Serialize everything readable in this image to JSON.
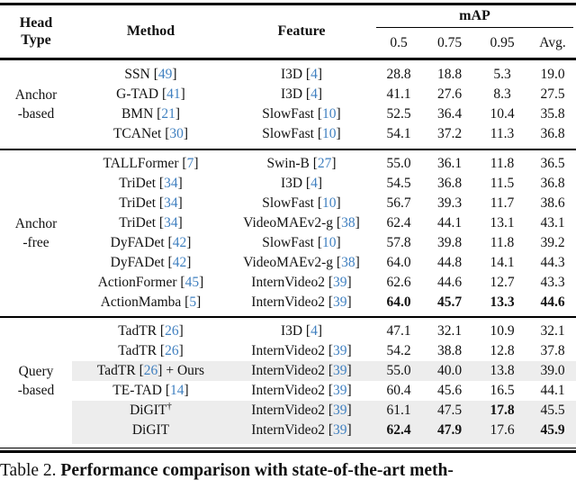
{
  "header": {
    "head_type_line1": "Head",
    "head_type_line2": "Type",
    "method": "Method",
    "feature": "Feature",
    "map_label": "mAP",
    "subcols": [
      "0.5",
      "0.75",
      "0.95",
      "Avg."
    ]
  },
  "sections": [
    {
      "head_type_lines": [
        "Anchor",
        "-based"
      ],
      "rows": [
        {
          "method": "SSN",
          "mcite": "49",
          "mpost": "",
          "sup": "",
          "feature": "I3D",
          "fcite": "4",
          "vals": [
            "28.8",
            "18.8",
            "5.3",
            "19.0"
          ],
          "bold": [
            false,
            false,
            false,
            false
          ],
          "hl": false
        },
        {
          "method": "G-TAD",
          "mcite": "41",
          "mpost": "",
          "sup": "",
          "feature": "I3D",
          "fcite": "4",
          "vals": [
            "41.1",
            "27.6",
            "8.3",
            "27.5"
          ],
          "bold": [
            false,
            false,
            false,
            false
          ],
          "hl": false
        },
        {
          "method": "BMN",
          "mcite": "21",
          "mpost": "",
          "sup": "",
          "feature": "SlowFast",
          "fcite": "10",
          "vals": [
            "52.5",
            "36.4",
            "10.4",
            "35.8"
          ],
          "bold": [
            false,
            false,
            false,
            false
          ],
          "hl": false
        },
        {
          "method": "TCANet",
          "mcite": "30",
          "mpost": "",
          "sup": "",
          "feature": "SlowFast",
          "fcite": "10",
          "vals": [
            "54.1",
            "37.2",
            "11.3",
            "36.8"
          ],
          "bold": [
            false,
            false,
            false,
            false
          ],
          "hl": false
        }
      ]
    },
    {
      "head_type_lines": [
        "Anchor",
        "-free"
      ],
      "rows": [
        {
          "method": "TALLFormer",
          "mcite": "7",
          "mpost": "",
          "sup": "",
          "feature": "Swin-B",
          "fcite": "27",
          "vals": [
            "55.0",
            "36.1",
            "11.8",
            "36.5"
          ],
          "bold": [
            false,
            false,
            false,
            false
          ],
          "hl": false
        },
        {
          "method": "TriDet",
          "mcite": "34",
          "mpost": "",
          "sup": "",
          "feature": "I3D",
          "fcite": "4",
          "vals": [
            "54.5",
            "36.8",
            "11.5",
            "36.8"
          ],
          "bold": [
            false,
            false,
            false,
            false
          ],
          "hl": false
        },
        {
          "method": "TriDet",
          "mcite": "34",
          "mpost": "",
          "sup": "",
          "feature": "SlowFast",
          "fcite": "10",
          "vals": [
            "56.7",
            "39.3",
            "11.7",
            "38.6"
          ],
          "bold": [
            false,
            false,
            false,
            false
          ],
          "hl": false
        },
        {
          "method": "TriDet",
          "mcite": "34",
          "mpost": "",
          "sup": "",
          "feature": "VideoMAEv2-g",
          "fcite": "38",
          "vals": [
            "62.4",
            "44.1",
            "13.1",
            "43.1"
          ],
          "bold": [
            false,
            false,
            false,
            false
          ],
          "hl": false
        },
        {
          "method": "DyFADet",
          "mcite": "42",
          "mpost": "",
          "sup": "",
          "feature": "SlowFast",
          "fcite": "10",
          "vals": [
            "57.8",
            "39.8",
            "11.8",
            "39.2"
          ],
          "bold": [
            false,
            false,
            false,
            false
          ],
          "hl": false
        },
        {
          "method": "DyFADet",
          "mcite": "42",
          "mpost": "",
          "sup": "",
          "feature": "VideoMAEv2-g",
          "fcite": "38",
          "vals": [
            "64.0",
            "44.8",
            "14.1",
            "44.3"
          ],
          "bold": [
            false,
            false,
            false,
            false
          ],
          "hl": false
        },
        {
          "method": "ActionFormer",
          "mcite": "45",
          "mpost": "",
          "sup": "",
          "feature": "InternVideo2",
          "fcite": "39",
          "vals": [
            "62.6",
            "44.6",
            "12.7",
            "43.3"
          ],
          "bold": [
            false,
            false,
            false,
            false
          ],
          "hl": false
        },
        {
          "method": "ActionMamba",
          "mcite": "5",
          "mpost": "",
          "sup": "",
          "feature": "InternVideo2",
          "fcite": "39",
          "vals": [
            "64.0",
            "45.7",
            "13.3",
            "44.6"
          ],
          "bold": [
            true,
            true,
            true,
            true
          ],
          "hl": false
        }
      ]
    },
    {
      "head_type_lines": [
        "Query",
        "-based"
      ],
      "rows": [
        {
          "method": "TadTR",
          "mcite": "26",
          "mpost": "",
          "sup": "",
          "feature": "I3D",
          "fcite": "4",
          "vals": [
            "47.1",
            "32.1",
            "10.9",
            "32.1"
          ],
          "bold": [
            false,
            false,
            false,
            false
          ],
          "hl": false
        },
        {
          "method": "TadTR",
          "mcite": "26",
          "mpost": "",
          "sup": "",
          "feature": "InternVideo2",
          "fcite": "39",
          "vals": [
            "54.2",
            "38.8",
            "12.8",
            "37.8"
          ],
          "bold": [
            false,
            false,
            false,
            false
          ],
          "hl": false
        },
        {
          "method": "TadTR",
          "mcite": "26",
          "mpost": " + Ours",
          "sup": "",
          "feature": "InternVideo2",
          "fcite": "39",
          "vals": [
            "55.0",
            "40.0",
            "13.8",
            "39.0"
          ],
          "bold": [
            false,
            false,
            false,
            false
          ],
          "hl": true
        },
        {
          "method": "TE-TAD",
          "mcite": "14",
          "mpost": "",
          "sup": "",
          "feature": "InternVideo2",
          "fcite": "39",
          "vals": [
            "60.4",
            "45.6",
            "16.5",
            "44.1"
          ],
          "bold": [
            false,
            false,
            false,
            false
          ],
          "hl": false
        },
        {
          "method": "DiGIT",
          "mcite": null,
          "mpost": "",
          "sup": "†",
          "feature": "InternVideo2",
          "fcite": "39",
          "vals": [
            "61.1",
            "47.5",
            "17.8",
            "45.5"
          ],
          "bold": [
            false,
            false,
            true,
            false
          ],
          "hl": true
        },
        {
          "method": "DiGIT",
          "mcite": null,
          "mpost": "",
          "sup": "",
          "feature": "InternVideo2",
          "fcite": "39",
          "vals": [
            "62.4",
            "47.9",
            "17.6",
            "45.9"
          ],
          "bold": [
            true,
            true,
            false,
            true
          ],
          "hl": true
        }
      ]
    }
  ],
  "caption": {
    "label": "Table 2.",
    "text": "Performance comparison with state-of-the-art meth-"
  },
  "colors": {
    "citation": "#4080c0",
    "highlight": "#ededed"
  }
}
